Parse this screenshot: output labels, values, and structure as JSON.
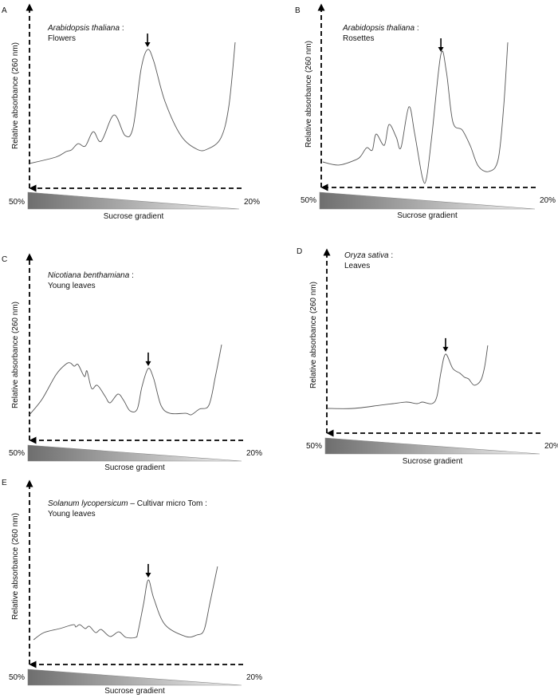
{
  "chart_data": [
    {
      "type": "line",
      "panel": "A",
      "title_species": "Arabidopsis thaliana",
      "title_sep": " :",
      "title_line2": "Flowers",
      "ylabel": "Relative absorbance (260 nm)",
      "xlabel": "Sucrose gradient",
      "x_left": "50%",
      "x_right": "20%",
      "peak_arrow_x": 0.563,
      "points": [
        [
          0,
          0.134
        ],
        [
          0.125,
          0.169
        ],
        [
          0.175,
          0.199
        ],
        [
          0.2,
          0.208
        ],
        [
          0.232,
          0.242
        ],
        [
          0.266,
          0.229
        ],
        [
          0.304,
          0.307
        ],
        [
          0.342,
          0.255
        ],
        [
          0.403,
          0.398
        ],
        [
          0.456,
          0.286
        ],
        [
          0.494,
          0.329
        ],
        [
          0.532,
          0.645
        ],
        [
          0.563,
          0.753
        ],
        [
          0.593,
          0.688
        ],
        [
          0.646,
          0.472
        ],
        [
          0.722,
          0.286
        ],
        [
          0.798,
          0.212
        ],
        [
          0.848,
          0.212
        ],
        [
          0.913,
          0.273
        ],
        [
          0.951,
          0.446
        ],
        [
          0.981,
          0.792
        ]
      ]
    },
    {
      "type": "line",
      "panel": "B",
      "title_species": "Arabidopsis thaliana",
      "title_sep": " :",
      "title_line2": "Rosettes",
      "ylabel": "Relative absorbance (260 nm)",
      "xlabel": "Sucrose gradient",
      "x_left": "50%",
      "x_right": "20%",
      "peak_arrow_x": 0.56,
      "points": [
        [
          0.007,
          0.139
        ],
        [
          0.082,
          0.122
        ],
        [
          0.164,
          0.152
        ],
        [
          0.187,
          0.174
        ],
        [
          0.213,
          0.217
        ],
        [
          0.239,
          0.204
        ],
        [
          0.257,
          0.291
        ],
        [
          0.295,
          0.23
        ],
        [
          0.317,
          0.343
        ],
        [
          0.351,
          0.274
        ],
        [
          0.373,
          0.217
        ],
        [
          0.41,
          0.439
        ],
        [
          0.437,
          0.296
        ],
        [
          0.474,
          0.052
        ],
        [
          0.493,
          0.052
        ],
        [
          0.519,
          0.296
        ],
        [
          0.56,
          0.726
        ],
        [
          0.586,
          0.63
        ],
        [
          0.616,
          0.357
        ],
        [
          0.66,
          0.313
        ],
        [
          0.698,
          0.226
        ],
        [
          0.735,
          0.117
        ],
        [
          0.784,
          0.087
        ],
        [
          0.828,
          0.152
        ],
        [
          0.854,
          0.443
        ],
        [
          0.873,
          0.791
        ]
      ]
    },
    {
      "type": "line",
      "panel": "C",
      "title_species": "Nicotiana benthamiana",
      "title_sep": " :",
      "title_line2": "Young leaves",
      "ylabel": "Relative absorbance (260 nm)",
      "xlabel": "Sucrose gradient",
      "x_left": "50%",
      "x_right": "20%",
      "peak_arrow_x": 0.56,
      "points": [
        [
          0,
          0.137
        ],
        [
          0.06,
          0.222
        ],
        [
          0.124,
          0.35
        ],
        [
          0.169,
          0.406
        ],
        [
          0.192,
          0.415
        ],
        [
          0.211,
          0.397
        ],
        [
          0.229,
          0.406
        ],
        [
          0.259,
          0.342
        ],
        [
          0.271,
          0.372
        ],
        [
          0.293,
          0.278
        ],
        [
          0.32,
          0.295
        ],
        [
          0.357,
          0.235
        ],
        [
          0.38,
          0.201
        ],
        [
          0.417,
          0.248
        ],
        [
          0.444,
          0.214
        ],
        [
          0.474,
          0.158
        ],
        [
          0.508,
          0.167
        ],
        [
          0.53,
          0.286
        ],
        [
          0.56,
          0.385
        ],
        [
          0.586,
          0.329
        ],
        [
          0.62,
          0.188
        ],
        [
          0.662,
          0.145
        ],
        [
          0.737,
          0.145
        ],
        [
          0.763,
          0.137
        ],
        [
          0.801,
          0.167
        ],
        [
          0.846,
          0.188
        ],
        [
          0.876,
          0.338
        ],
        [
          0.906,
          0.513
        ]
      ]
    },
    {
      "type": "line",
      "panel": "D",
      "title_species": "Oryza sativa",
      "title_sep": " :",
      "title_line2": "Leaves",
      "ylabel": "Relative absorbance (260 nm)",
      "xlabel": "Sucrose gradient",
      "x_left": "50%",
      "x_right": "20%",
      "peak_arrow_x": 0.56,
      "points": [
        [
          0,
          0.134
        ],
        [
          0.124,
          0.134
        ],
        [
          0.252,
          0.152
        ],
        [
          0.312,
          0.16
        ],
        [
          0.376,
          0.169
        ],
        [
          0.425,
          0.16
        ],
        [
          0.451,
          0.169
        ],
        [
          0.496,
          0.16
        ],
        [
          0.519,
          0.199
        ],
        [
          0.538,
          0.329
        ],
        [
          0.56,
          0.429
        ],
        [
          0.594,
          0.351
        ],
        [
          0.628,
          0.325
        ],
        [
          0.65,
          0.303
        ],
        [
          0.669,
          0.294
        ],
        [
          0.695,
          0.26
        ],
        [
          0.726,
          0.286
        ],
        [
          0.744,
          0.359
        ],
        [
          0.759,
          0.476
        ]
      ]
    },
    {
      "type": "line",
      "panel": "E",
      "title_species": "Solanum lycopersicum",
      "title_sep": " – Cultivar  micro Tom :",
      "title_line2": "Young leaves",
      "ylabel": "Relative absorbance (260 nm)",
      "xlabel": "Sucrose gradient",
      "x_left": "50%",
      "x_right": "20%",
      "peak_arrow_x": 0.56,
      "points": [
        [
          0.019,
          0.134
        ],
        [
          0.068,
          0.173
        ],
        [
          0.143,
          0.195
        ],
        [
          0.207,
          0.216
        ],
        [
          0.218,
          0.203
        ],
        [
          0.237,
          0.216
        ],
        [
          0.263,
          0.195
        ],
        [
          0.282,
          0.208
        ],
        [
          0.312,
          0.173
        ],
        [
          0.338,
          0.19
        ],
        [
          0.38,
          0.152
        ],
        [
          0.421,
          0.177
        ],
        [
          0.455,
          0.147
        ],
        [
          0.5,
          0.147
        ],
        [
          0.511,
          0.173
        ],
        [
          0.538,
          0.329
        ],
        [
          0.56,
          0.459
        ],
        [
          0.586,
          0.359
        ],
        [
          0.639,
          0.216
        ],
        [
          0.737,
          0.152
        ],
        [
          0.789,
          0.16
        ],
        [
          0.823,
          0.186
        ],
        [
          0.85,
          0.329
        ],
        [
          0.887,
          0.532
        ]
      ]
    }
  ],
  "colors": {
    "curve": "#555555",
    "axis": "#000000",
    "gradient_dark": "#6e6e6e",
    "gradient_light": "#f2f2f2"
  }
}
